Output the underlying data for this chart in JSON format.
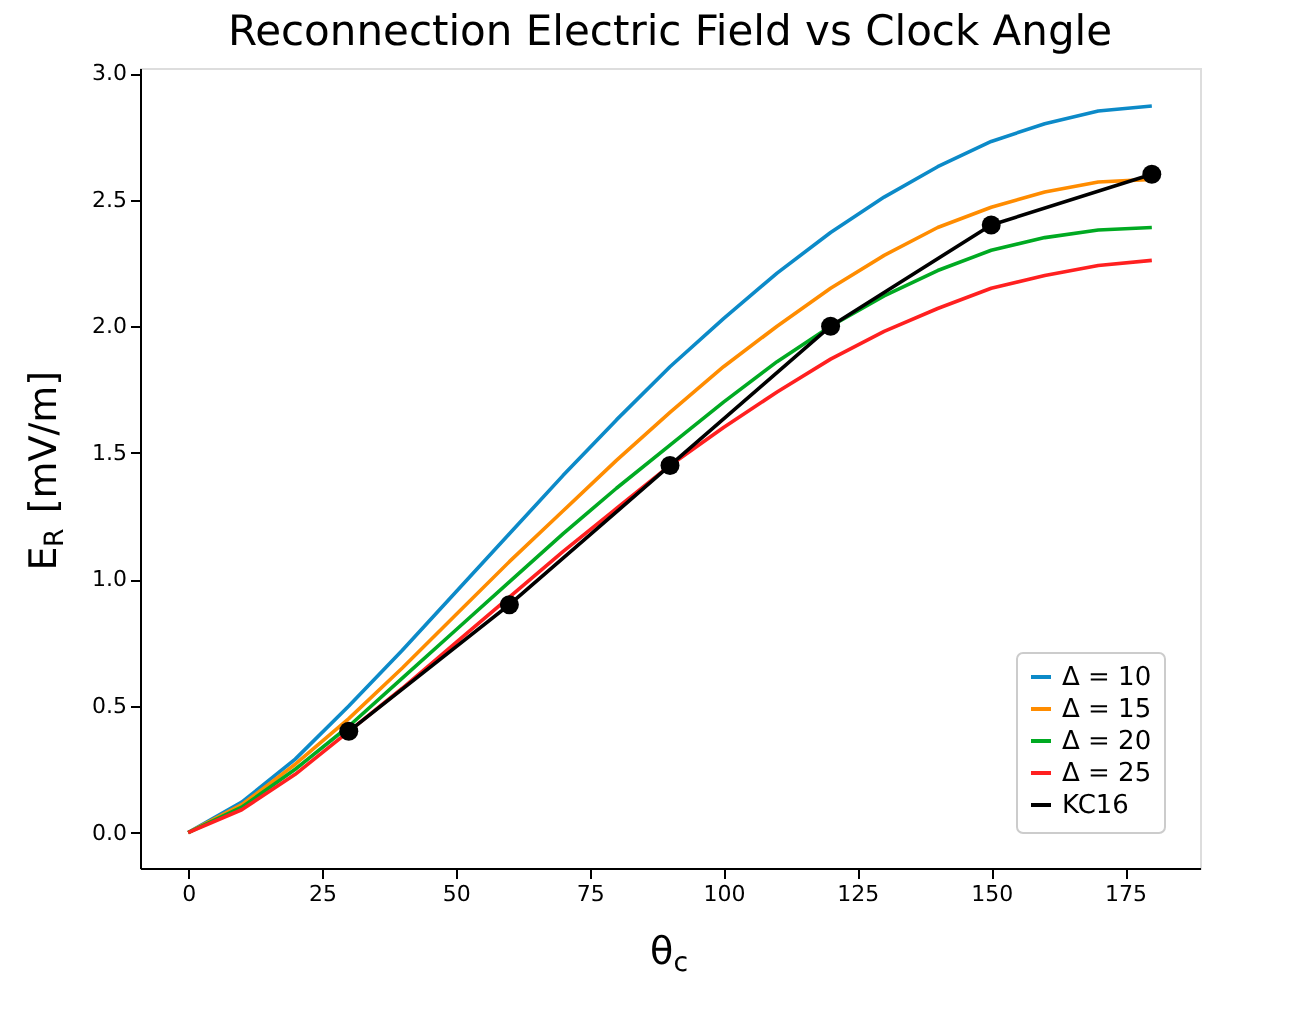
{
  "chart_data": {
    "type": "line",
    "title": "Reconnection Electric Field vs Clock Angle",
    "xlabel": "θ$_{c}$",
    "ylabel": "E$_{R}$ [mV/m]",
    "x": [
      0,
      10,
      20,
      30,
      40,
      50,
      60,
      70,
      80,
      90,
      100,
      110,
      120,
      130,
      140,
      150,
      160,
      170,
      180
    ],
    "series": [
      {
        "name": "Δ = 10",
        "color": "#0c8ac8",
        "values": [
          0,
          0.12,
          0.29,
          0.5,
          0.72,
          0.95,
          1.18,
          1.41,
          1.63,
          1.84,
          2.03,
          2.21,
          2.37,
          2.51,
          2.63,
          2.73,
          2.8,
          2.85,
          2.87
        ]
      },
      {
        "name": "Δ = 15",
        "color": "#ff8c00",
        "values": [
          0,
          0.11,
          0.27,
          0.45,
          0.65,
          0.86,
          1.07,
          1.27,
          1.47,
          1.66,
          1.84,
          2.0,
          2.15,
          2.28,
          2.39,
          2.47,
          2.53,
          2.57,
          2.58
        ]
      },
      {
        "name": "Δ = 20",
        "color": "#00aa22",
        "values": [
          0,
          0.1,
          0.25,
          0.42,
          0.61,
          0.8,
          0.99,
          1.18,
          1.36,
          1.53,
          1.7,
          1.86,
          2.0,
          2.12,
          2.22,
          2.3,
          2.35,
          2.38,
          2.39
        ]
      },
      {
        "name": "Δ = 25",
        "color": "#ff2020",
        "values": [
          0,
          0.09,
          0.23,
          0.4,
          0.57,
          0.75,
          0.93,
          1.11,
          1.28,
          1.45,
          1.6,
          1.74,
          1.87,
          1.98,
          2.07,
          2.15,
          2.2,
          2.24,
          2.26
        ]
      },
      {
        "name": "KC16",
        "color": "#000000",
        "marker": "circle",
        "x": [
          30,
          60,
          90,
          120,
          150,
          180
        ],
        "values": [
          0.4,
          0.9,
          1.45,
          2.0,
          2.4,
          2.6
        ]
      }
    ],
    "xlim": [
      -9,
      189
    ],
    "ylim": [
      -0.14,
      3.02
    ],
    "xticks": [
      0,
      25,
      50,
      75,
      100,
      125,
      150,
      175
    ],
    "yticks": [
      {
        "value": 0,
        "label": "0.0"
      },
      0.5,
      {
        "value": 1,
        "label": "1.0"
      },
      1.5,
      {
        "value": 2,
        "label": "2.0"
      },
      2.5,
      {
        "value": 3,
        "label": "3.0"
      }
    ],
    "grid": false,
    "legend": "bottom right",
    "marker": "none",
    "line_style": "solid"
  }
}
